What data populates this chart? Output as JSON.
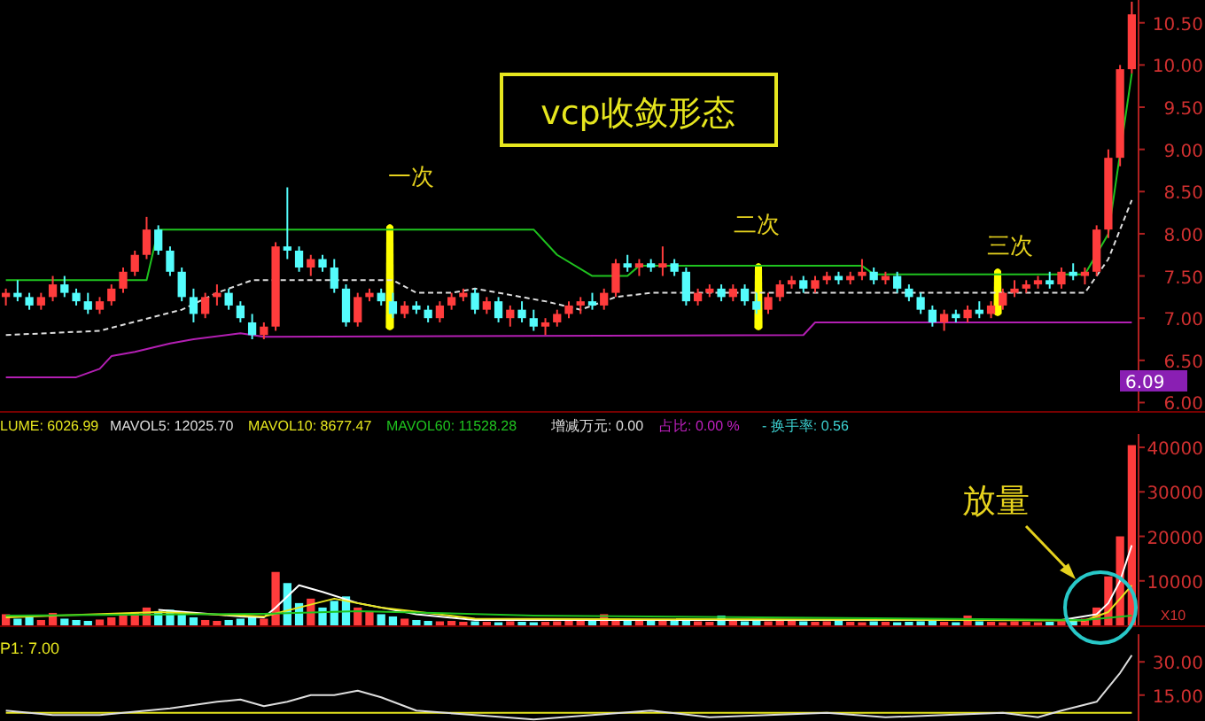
{
  "chart_data": [
    {
      "type": "candlestick",
      "title": "vcp收敛形态",
      "annotations": [
        "一次",
        "二次",
        "三次",
        "6.09"
      ],
      "tick_labels": "y",
      "categories": [
        null,
        null,
        null,
        null,
        null,
        null,
        null,
        null,
        null,
        null,
        null,
        null,
        null,
        null,
        null,
        null,
        null,
        null,
        null,
        null,
        null,
        null,
        null,
        null,
        null,
        null,
        null,
        null,
        null,
        null,
        null,
        null,
        null,
        null,
        null,
        null,
        null,
        null,
        null,
        null,
        null,
        null,
        null,
        null,
        null,
        null,
        null,
        null,
        null,
        null,
        null,
        null,
        null,
        null,
        null,
        null,
        null,
        null,
        null,
        null,
        null,
        null,
        null,
        null,
        null,
        null,
        null,
        null,
        null,
        null,
        null,
        null,
        null,
        null,
        null,
        null,
        null,
        null,
        null,
        null,
        null,
        null,
        null,
        null,
        null,
        null,
        null,
        null,
        null,
        null,
        null,
        null,
        null,
        null,
        null,
        null,
        null
      ],
      "ylim": [
        5.9,
        10.77
      ],
      "yticks": [
        {
          "value": 6,
          "label": "6.00"
        },
        {
          "value": 6.5,
          "label": "6.50"
        },
        {
          "value": 7,
          "label": "7.00"
        },
        {
          "value": 7.5,
          "label": "7.50"
        },
        {
          "value": 8,
          "label": "8.00"
        },
        {
          "value": 8.5,
          "label": "8.50"
        },
        {
          "value": 9,
          "label": "9.00"
        },
        {
          "value": 9.5,
          "label": "9.50"
        },
        {
          "value": 10,
          "label": "10.00"
        },
        {
          "value": 10.5,
          "label": "10.50"
        }
      ],
      "ohlc": [
        [
          7.25,
          7.35,
          7.15,
          7.3
        ],
        [
          7.3,
          7.45,
          7.2,
          7.25
        ],
        [
          7.25,
          7.3,
          7.1,
          7.15
        ],
        [
          7.15,
          7.3,
          7.1,
          7.25
        ],
        [
          7.25,
          7.5,
          7.2,
          7.4
        ],
        [
          7.4,
          7.5,
          7.25,
          7.3
        ],
        [
          7.3,
          7.35,
          7.15,
          7.2
        ],
        [
          7.2,
          7.3,
          7.05,
          7.1
        ],
        [
          7.1,
          7.25,
          7.05,
          7.2
        ],
        [
          7.2,
          7.4,
          7.15,
          7.35
        ],
        [
          7.35,
          7.6,
          7.3,
          7.55
        ],
        [
          7.55,
          7.8,
          7.5,
          7.75
        ],
        [
          7.75,
          8.2,
          7.7,
          8.05
        ],
        [
          8.05,
          8.1,
          7.75,
          7.8
        ],
        [
          7.8,
          7.85,
          7.5,
          7.55
        ],
        [
          7.55,
          7.6,
          7.2,
          7.25
        ],
        [
          7.25,
          7.35,
          6.95,
          7.05
        ],
        [
          7.05,
          7.3,
          7.0,
          7.25
        ],
        [
          7.25,
          7.4,
          7.15,
          7.3
        ],
        [
          7.3,
          7.35,
          7.1,
          7.15
        ],
        [
          7.15,
          7.2,
          6.95,
          7.0
        ],
        [
          6.95,
          7.05,
          6.75,
          6.8
        ],
        [
          6.8,
          6.95,
          6.75,
          6.9
        ],
        [
          6.9,
          7.9,
          6.85,
          7.85
        ],
        [
          7.85,
          8.55,
          7.7,
          7.8
        ],
        [
          7.8,
          7.85,
          7.55,
          7.6
        ],
        [
          7.6,
          7.75,
          7.5,
          7.7
        ],
        [
          7.7,
          7.75,
          7.55,
          7.6
        ],
        [
          7.6,
          7.7,
          7.3,
          7.35
        ],
        [
          7.35,
          7.4,
          6.9,
          6.95
        ],
        [
          6.95,
          7.3,
          6.9,
          7.25
        ],
        [
          7.25,
          7.35,
          7.2,
          7.3
        ],
        [
          7.3,
          7.35,
          7.15,
          7.2
        ],
        [
          7.2,
          7.3,
          7.0,
          7.05
        ],
        [
          7.05,
          7.2,
          7.0,
          7.15
        ],
        [
          7.15,
          7.2,
          7.05,
          7.1
        ],
        [
          7.1,
          7.15,
          6.95,
          7.0
        ],
        [
          7.0,
          7.2,
          6.95,
          7.15
        ],
        [
          7.15,
          7.3,
          7.1,
          7.25
        ],
        [
          7.25,
          7.35,
          7.2,
          7.3
        ],
        [
          7.3,
          7.35,
          7.05,
          7.1
        ],
        [
          7.1,
          7.25,
          7.05,
          7.2
        ],
        [
          7.2,
          7.25,
          6.95,
          7.0
        ],
        [
          7.0,
          7.15,
          6.9,
          7.1
        ],
        [
          7.1,
          7.2,
          6.95,
          7.0
        ],
        [
          7.0,
          7.1,
          6.85,
          6.9
        ],
        [
          6.9,
          7.0,
          6.8,
          6.95
        ],
        [
          6.95,
          7.1,
          6.9,
          7.05
        ],
        [
          7.05,
          7.2,
          7.0,
          7.15
        ],
        [
          7.15,
          7.25,
          7.05,
          7.2
        ],
        [
          7.2,
          7.3,
          7.1,
          7.15
        ],
        [
          7.15,
          7.35,
          7.1,
          7.3
        ],
        [
          7.3,
          7.7,
          7.25,
          7.65
        ],
        [
          7.65,
          7.75,
          7.55,
          7.6
        ],
        [
          7.6,
          7.7,
          7.5,
          7.65
        ],
        [
          7.65,
          7.7,
          7.55,
          7.6
        ],
        [
          7.6,
          7.85,
          7.5,
          7.65
        ],
        [
          7.65,
          7.7,
          7.5,
          7.55
        ],
        [
          7.55,
          7.6,
          7.15,
          7.2
        ],
        [
          7.2,
          7.35,
          7.15,
          7.3
        ],
        [
          7.3,
          7.4,
          7.25,
          7.35
        ],
        [
          7.35,
          7.4,
          7.2,
          7.25
        ],
        [
          7.25,
          7.4,
          7.2,
          7.35
        ],
        [
          7.35,
          7.4,
          7.15,
          7.2
        ],
        [
          7.2,
          7.3,
          7.05,
          7.1
        ],
        [
          7.1,
          7.3,
          7.05,
          7.25
        ],
        [
          7.25,
          7.45,
          7.2,
          7.4
        ],
        [
          7.4,
          7.5,
          7.35,
          7.45
        ],
        [
          7.45,
          7.5,
          7.3,
          7.35
        ],
        [
          7.35,
          7.5,
          7.3,
          7.45
        ],
        [
          7.45,
          7.55,
          7.4,
          7.5
        ],
        [
          7.5,
          7.55,
          7.4,
          7.45
        ],
        [
          7.45,
          7.55,
          7.4,
          7.5
        ],
        [
          7.5,
          7.7,
          7.45,
          7.55
        ],
        [
          7.55,
          7.6,
          7.4,
          7.45
        ],
        [
          7.45,
          7.55,
          7.4,
          7.5
        ],
        [
          7.5,
          7.55,
          7.3,
          7.35
        ],
        [
          7.35,
          7.4,
          7.2,
          7.25
        ],
        [
          7.25,
          7.3,
          7.05,
          7.1
        ],
        [
          7.1,
          7.15,
          6.9,
          6.95
        ],
        [
          6.95,
          7.1,
          6.85,
          7.05
        ],
        [
          7.05,
          7.1,
          6.95,
          7.0
        ],
        [
          7.0,
          7.15,
          6.95,
          7.1
        ],
        [
          7.1,
          7.2,
          7.0,
          7.05
        ],
        [
          7.05,
          7.2,
          7.0,
          7.15
        ],
        [
          7.15,
          7.35,
          7.1,
          7.3
        ],
        [
          7.3,
          7.45,
          7.25,
          7.35
        ],
        [
          7.35,
          7.45,
          7.3,
          7.4
        ],
        [
          7.4,
          7.5,
          7.35,
          7.45
        ],
        [
          7.45,
          7.55,
          7.35,
          7.4
        ],
        [
          7.4,
          7.6,
          7.35,
          7.55
        ],
        [
          7.55,
          7.65,
          7.45,
          7.5
        ],
        [
          7.5,
          7.6,
          7.4,
          7.55
        ],
        [
          7.55,
          8.1,
          7.5,
          8.05
        ],
        [
          8.05,
          9.0,
          7.95,
          8.9
        ],
        [
          8.9,
          10.0,
          8.8,
          9.95
        ],
        [
          9.95,
          10.75,
          9.9,
          10.6
        ]
      ],
      "series": [
        {
          "type": "line",
          "color": "#1fc31f",
          "values": [
            7.45,
            null,
            null,
            null,
            null,
            null,
            null,
            null,
            null,
            null,
            null,
            null,
            7.45,
            8.05,
            null,
            null,
            null,
            null,
            null,
            null,
            null,
            null,
            null,
            null,
            null,
            null,
            null,
            null,
            null,
            null,
            null,
            null,
            null,
            null,
            null,
            null,
            null,
            null,
            null,
            null,
            null,
            null,
            null,
            null,
            null,
            8.05,
            null,
            7.75,
            null,
            null,
            7.5,
            null,
            null,
            7.5,
            7.62,
            null,
            null,
            null,
            null,
            null,
            null,
            null,
            null,
            null,
            null,
            null,
            null,
            null,
            null,
            null,
            null,
            null,
            null,
            7.62,
            7.52,
            null,
            null,
            null,
            null,
            null,
            null,
            null,
            null,
            null,
            null,
            null,
            null,
            null,
            null,
            null,
            null,
            null,
            7.52,
            null,
            8.0,
            null,
            9.9
          ]
        },
        {
          "type": "line",
          "color": "#b31fb3",
          "values": [
            6.3,
            null,
            null,
            null,
            null,
            null,
            6.3,
            null,
            6.4,
            6.55,
            null,
            6.6,
            null,
            null,
            6.7,
            null,
            6.75,
            null,
            null,
            null,
            6.82,
            null,
            6.78,
            null,
            null,
            null,
            null,
            null,
            null,
            null,
            null,
            null,
            null,
            null,
            null,
            null,
            null,
            null,
            null,
            null,
            null,
            null,
            null,
            null,
            null,
            null,
            null,
            null,
            null,
            null,
            null,
            null,
            null,
            null,
            null,
            null,
            null,
            null,
            null,
            null,
            null,
            null,
            null,
            null,
            null,
            null,
            null,
            null,
            6.8,
            6.95,
            null,
            null,
            null,
            null,
            null,
            null,
            null,
            null,
            null,
            null,
            null,
            null,
            null,
            null,
            null,
            null,
            null,
            null,
            null,
            null,
            null,
            null,
            null,
            null,
            null,
            null,
            6.95
          ]
        },
        {
          "type": "line",
          "color": "#dddddd",
          "line_style": "dashed",
          "values": [
            6.8,
            null,
            null,
            null,
            null,
            null,
            null,
            null,
            6.85,
            null,
            null,
            null,
            null,
            null,
            null,
            7.1,
            null,
            null,
            7.3,
            null,
            7.4,
            7.45,
            null,
            null,
            null,
            null,
            null,
            null,
            null,
            null,
            null,
            null,
            null,
            7.45,
            null,
            7.3,
            null,
            null,
            7.3,
            null,
            7.35,
            null,
            null,
            null,
            null,
            null,
            7.2,
            null,
            null,
            7.1,
            null,
            null,
            7.25,
            null,
            null,
            7.3,
            null,
            null,
            null,
            null,
            null,
            null,
            null,
            null,
            null,
            null,
            null,
            null,
            null,
            null,
            null,
            null,
            null,
            null,
            null,
            null,
            null,
            null,
            null,
            null,
            null,
            null,
            null,
            null,
            null,
            null,
            null,
            null,
            null,
            null,
            null,
            null,
            7.3,
            null,
            7.7,
            null,
            8.4
          ]
        }
      ]
    },
    {
      "type": "bar",
      "annotations": [
        "LUME: 6026.99",
        "MAVOL5: 12025.70",
        "MAVOL10: 8677.47",
        "MAVOL60: 11528.28",
        "增减万元: 0.00",
        "占比: 0.00 %",
        "- 换手率: 0.56",
        "放量",
        "X10"
      ],
      "tick_labels": "y",
      "categories": [
        null,
        null,
        null,
        null,
        null,
        null,
        null,
        null,
        null,
        null,
        null,
        null,
        null,
        null,
        null,
        null,
        null,
        null,
        null,
        null,
        null,
        null,
        null,
        null,
        null,
        null,
        null,
        null,
        null,
        null,
        null,
        null,
        null,
        null,
        null,
        null,
        null,
        null,
        null,
        null,
        null,
        null,
        null,
        null,
        null,
        null,
        null,
        null,
        null,
        null,
        null,
        null,
        null,
        null,
        null,
        null,
        null,
        null,
        null,
        null,
        null,
        null,
        null,
        null,
        null,
        null,
        null,
        null,
        null,
        null,
        null,
        null,
        null,
        null,
        null,
        null,
        null,
        null,
        null,
        null,
        null,
        null,
        null,
        null,
        null,
        null,
        null,
        null,
        null,
        null,
        null,
        null,
        null,
        null,
        null,
        null,
        null
      ],
      "ylim": [
        0,
        43000
      ],
      "yticks": [
        10000,
        20000,
        30000,
        40000
      ],
      "series": [
        {
          "type": "bar",
          "colors": [
            "#ff3c3c",
            "#54fcfc",
            "#54fcfc",
            "#ff3c3c",
            "#ff3c3c",
            "#54fcfc",
            "#54fcfc",
            "#54fcfc",
            "#ff3c3c",
            "#ff3c3c",
            "#ff3c3c",
            "#ff3c3c",
            "#ff3c3c",
            "#54fcfc",
            "#54fcfc",
            "#54fcfc",
            "#54fcfc",
            "#ff3c3c",
            "#ff3c3c",
            "#54fcfc",
            "#54fcfc",
            "#54fcfc",
            "#ff3c3c",
            "#ff3c3c",
            "#54fcfc",
            "#54fcfc",
            "#ff3c3c",
            "#54fcfc",
            "#54fcfc",
            "#54fcfc",
            "#ff3c3c",
            "#ff3c3c",
            "#54fcfc",
            "#54fcfc",
            "#ff3c3c",
            "#54fcfc",
            "#54fcfc",
            "#ff3c3c",
            "#ff3c3c",
            "#ff3c3c",
            "#54fcfc",
            "#ff3c3c",
            "#54fcfc",
            "#ff3c3c",
            "#54fcfc",
            "#54fcfc",
            "#ff3c3c",
            "#ff3c3c",
            "#ff3c3c",
            "#ff3c3c",
            "#54fcfc",
            "#ff3c3c",
            "#ff3c3c",
            "#54fcfc",
            "#ff3c3c",
            "#54fcfc",
            "#ff3c3c",
            "#54fcfc",
            "#54fcfc",
            "#ff3c3c",
            "#ff3c3c",
            "#54fcfc",
            "#ff3c3c",
            "#54fcfc",
            "#54fcfc",
            "#ff3c3c",
            "#ff3c3c",
            "#ff3c3c",
            "#54fcfc",
            "#ff3c3c",
            "#ff3c3c",
            "#54fcfc",
            "#ff3c3c",
            "#ff3c3c",
            "#54fcfc",
            "#ff3c3c",
            "#54fcfc",
            "#54fcfc",
            "#54fcfc",
            "#54fcfc",
            "#ff3c3c",
            "#54fcfc",
            "#ff3c3c",
            "#54fcfc",
            "#ff3c3c",
            "#ff3c3c",
            "#ff3c3c",
            "#ff3c3c",
            "#ff3c3c",
            "#54fcfc",
            "#ff3c3c",
            "#54fcfc",
            "#ff3c3c",
            "#ff3c3c",
            "#ff3c3c",
            "#ff3c3c",
            "#ff3c3c"
          ],
          "values": [
            2500,
            1500,
            1800,
            1200,
            2800,
            1500,
            1200,
            1000,
            1300,
            1800,
            2500,
            3000,
            4000,
            3200,
            3500,
            2500,
            1800,
            1200,
            1000,
            1200,
            1500,
            2000,
            1500,
            12000,
            9500,
            5000,
            6000,
            4000,
            5500,
            6500,
            4000,
            3000,
            2500,
            2000,
            1500,
            1200,
            1000,
            900,
            1000,
            800,
            900,
            800,
            700,
            900,
            800,
            700,
            800,
            900,
            1000,
            1200,
            1000,
            2500,
            1500,
            1200,
            1000,
            1300,
            1100,
            1000,
            1500,
            900,
            800,
            2200,
            1000,
            900,
            1200,
            900,
            1000,
            1100,
            900,
            800,
            900,
            1000,
            800,
            700,
            900,
            800,
            700,
            800,
            900,
            1000,
            800,
            700,
            2200,
            900,
            800,
            700,
            900,
            800,
            700,
            800,
            900,
            1000,
            1500,
            4000,
            11000,
            20000,
            40500
          ]
        },
        {
          "type": "line",
          "color": "#ffffff",
          "values": [
            null,
            null,
            null,
            null,
            null,
            null,
            null,
            null,
            null,
            null,
            null,
            null,
            null,
            3500,
            null,
            null,
            null,
            null,
            null,
            null,
            2000,
            null,
            1800,
            4000,
            null,
            9000,
            null,
            7500,
            null,
            null,
            5000,
            null,
            null,
            null,
            null,
            2500,
            null,
            null,
            null,
            null,
            1200,
            null,
            null,
            null,
            null,
            null,
            null,
            null,
            null,
            null,
            null,
            null,
            null,
            null,
            null,
            null,
            null,
            null,
            null,
            null,
            null,
            null,
            null,
            null,
            null,
            null,
            null,
            null,
            null,
            null,
            null,
            null,
            null,
            null,
            null,
            null,
            null,
            null,
            null,
            null,
            null,
            null,
            null,
            null,
            null,
            null,
            null,
            null,
            null,
            null,
            1200,
            null,
            null,
            2500,
            5000,
            10000,
            18000
          ]
        },
        {
          "type": "line",
          "color": "#e6e61e",
          "values": [
            1800,
            null,
            null,
            null,
            null,
            null,
            null,
            null,
            null,
            null,
            null,
            null,
            null,
            3000,
            null,
            null,
            null,
            null,
            null,
            null,
            null,
            null,
            2000,
            null,
            null,
            4000,
            null,
            null,
            6000,
            null,
            null,
            null,
            4000,
            null,
            null,
            null,
            null,
            null,
            null,
            null,
            1500,
            null,
            null,
            null,
            null,
            null,
            null,
            null,
            null,
            null,
            null,
            null,
            null,
            null,
            null,
            null,
            null,
            null,
            null,
            null,
            null,
            null,
            null,
            null,
            null,
            null,
            null,
            null,
            null,
            null,
            null,
            null,
            null,
            null,
            null,
            null,
            null,
            null,
            null,
            null,
            null,
            null,
            null,
            null,
            null,
            null,
            null,
            null,
            null,
            null,
            null,
            null,
            1100,
            null,
            3000,
            null,
            9000
          ]
        },
        {
          "type": "line",
          "color": "#1fc31f",
          "values": [
            2200,
            null,
            null,
            null,
            null,
            null,
            null,
            null,
            null,
            null,
            null,
            null,
            null,
            null,
            null,
            null,
            null,
            null,
            null,
            null,
            null,
            null,
            2600,
            null,
            null,
            null,
            null,
            null,
            null,
            null,
            3200,
            null,
            null,
            null,
            null,
            null,
            null,
            null,
            null,
            null,
            null,
            null,
            null,
            null,
            null,
            2200,
            null,
            null,
            null,
            null,
            null,
            null,
            null,
            null,
            null,
            null,
            null,
            null,
            null,
            null,
            null,
            null,
            null,
            null,
            null,
            null,
            null,
            null,
            null,
            null,
            null,
            null,
            null,
            null,
            null,
            null,
            null,
            null,
            null,
            null,
            null,
            null,
            null,
            null,
            null,
            null,
            null,
            null,
            null,
            null,
            null,
            null,
            1200,
            null,
            null,
            null,
            2200
          ]
        }
      ]
    },
    {
      "type": "line",
      "annotations": [
        "P1: 7.00"
      ],
      "tick_labels": "y",
      "categories": [
        null,
        null,
        null,
        null,
        null,
        null,
        null,
        null,
        null,
        null,
        null,
        null,
        null,
        null,
        null,
        null,
        null,
        null,
        null,
        null,
        null,
        null,
        null,
        null,
        null,
        null,
        null,
        null,
        null,
        null,
        null,
        null,
        null,
        null,
        null,
        null,
        null,
        null,
        null,
        null,
        null,
        null,
        null,
        null,
        null,
        null,
        null,
        null,
        null,
        null,
        null,
        null,
        null,
        null,
        null,
        null,
        null,
        null,
        null,
        null,
        null,
        null,
        null,
        null,
        null,
        null,
        null,
        null,
        null,
        null,
        null,
        null,
        null,
        null,
        null,
        null,
        null,
        null,
        null,
        null,
        null,
        null,
        null,
        null,
        null,
        null,
        null,
        null,
        null,
        null,
        null,
        null,
        null,
        null,
        null,
        null,
        null
      ],
      "ylim": [
        3.3,
        42.5
      ],
      "yticks": [
        {
          "value": 15,
          "label": "15.00"
        },
        {
          "value": 30,
          "label": "30.00"
        }
      ],
      "series": [
        {
          "color": "#e6e61e",
          "values": [
            7,
            null,
            null,
            null,
            null,
            null,
            null,
            null,
            null,
            null,
            null,
            null,
            null,
            null,
            null,
            null,
            null,
            null,
            null,
            null,
            null,
            null,
            null,
            null,
            null,
            null,
            null,
            null,
            null,
            null,
            null,
            null,
            null,
            null,
            null,
            null,
            null,
            null,
            null,
            null,
            null,
            null,
            null,
            null,
            null,
            null,
            null,
            null,
            null,
            null,
            null,
            null,
            null,
            null,
            null,
            null,
            null,
            null,
            null,
            null,
            null,
            null,
            null,
            null,
            null,
            null,
            null,
            null,
            null,
            null,
            null,
            null,
            null,
            null,
            null,
            null,
            null,
            null,
            null,
            null,
            null,
            null,
            null,
            null,
            null,
            null,
            null,
            null,
            null,
            null,
            null,
            null,
            null,
            null,
            null,
            null,
            7
          ]
        },
        {
          "color": "#dddddd",
          "values": [
            8,
            null,
            null,
            null,
            6,
            null,
            null,
            null,
            6,
            null,
            7,
            null,
            null,
            null,
            9,
            null,
            null,
            null,
            12,
            null,
            13,
            null,
            10,
            null,
            12,
            null,
            15,
            null,
            15,
            null,
            17,
            null,
            14,
            null,
            null,
            8,
            null,
            null,
            null,
            null,
            6,
            null,
            null,
            null,
            null,
            4,
            null,
            null,
            null,
            null,
            6,
            null,
            null,
            null,
            null,
            8,
            null,
            null,
            null,
            null,
            5,
            null,
            null,
            null,
            null,
            6,
            null,
            null,
            null,
            null,
            7,
            null,
            null,
            null,
            null,
            5,
            null,
            null,
            null,
            null,
            6,
            null,
            null,
            null,
            null,
            7,
            null,
            null,
            5,
            null,
            8,
            null,
            null,
            12,
            null,
            25,
            33
          ]
        }
      ]
    }
  ]
}
